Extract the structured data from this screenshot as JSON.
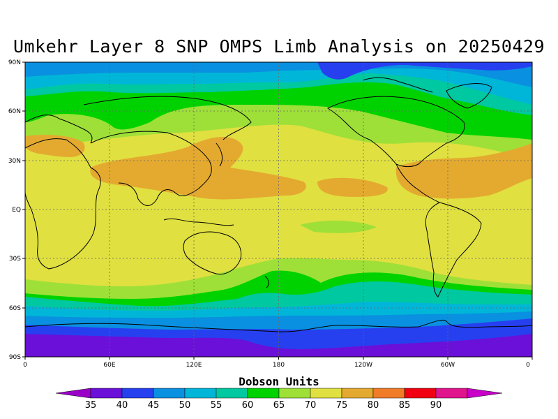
{
  "title": "Umkehr Layer 8 SNP OMPS Limb Analysis on 20250429",
  "colorbar": {
    "title": "Dobson Units",
    "labels": [
      "35",
      "40",
      "45",
      "50",
      "55",
      "60",
      "65",
      "70",
      "75",
      "80",
      "85",
      "90"
    ],
    "colors": [
      "#9a00c8",
      "#6a10d8",
      "#2640f0",
      "#0a90e0",
      "#00b6d8",
      "#00c8a0",
      "#00d200",
      "#9ee038",
      "#e0e040",
      "#e4aa30",
      "#f07c28",
      "#f00010",
      "#e0148c",
      "#c800c8"
    ]
  },
  "axes": {
    "x_ticks": [
      "0",
      "60E",
      "120E",
      "180",
      "120W",
      "60W",
      "0"
    ],
    "y_ticks": [
      "90N",
      "60N",
      "30N",
      "EQ",
      "30S",
      "60S",
      "90S"
    ]
  },
  "chart_data": {
    "type": "heatmap",
    "title": "Umkehr Layer 8 SNP OMPS Limb Analysis on 20250429",
    "units": "Dobson Units",
    "x_range_lon": [
      0,
      360
    ],
    "y_range_lat": [
      -90,
      90
    ],
    "contour_levels": [
      35,
      40,
      45,
      50,
      55,
      60,
      65,
      70,
      75,
      80,
      85,
      90
    ],
    "lat_bands": [
      {
        "lat_range": [
          80,
          90
        ],
        "value_range": [
          40,
          50
        ]
      },
      {
        "lat_range": [
          60,
          80
        ],
        "value_range": [
          50,
          65
        ]
      },
      {
        "lat_range": [
          45,
          60
        ],
        "value_range": [
          60,
          70
        ]
      },
      {
        "lat_range": [
          15,
          45
        ],
        "value_range": [
          70,
          80
        ]
      },
      {
        "lat_range": [
          -25,
          15
        ],
        "value_range": [
          70,
          75
        ]
      },
      {
        "lat_range": [
          -45,
          -25
        ],
        "value_range": [
          65,
          75
        ]
      },
      {
        "lat_range": [
          -60,
          -45
        ],
        "value_range": [
          55,
          65
        ]
      },
      {
        "lat_range": [
          -72,
          -60
        ],
        "value_range": [
          45,
          55
        ]
      },
      {
        "lat_range": [
          -90,
          -72
        ],
        "value_range": [
          35,
          40
        ]
      }
    ],
    "grid": true
  }
}
